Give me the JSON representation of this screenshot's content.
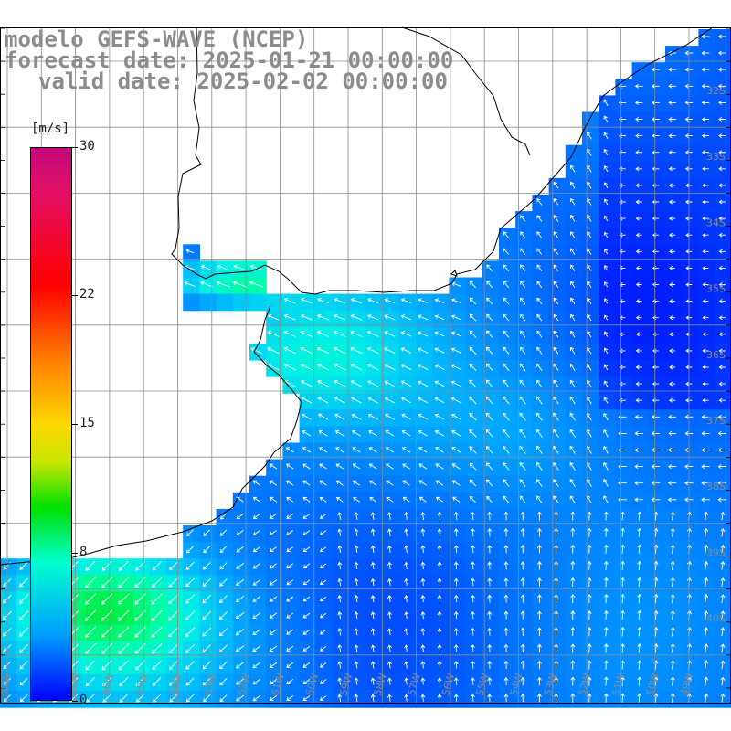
{
  "title": {
    "line1": "modelo GEFS-WAVE (NCEP)",
    "line2": "forecast date: 2025-01-21 00:00:00",
    "line3": "valid date: 2025-02-02 00:00:00"
  },
  "colorbar": {
    "unit": "[m/s]",
    "min": 0,
    "max": 30,
    "ticks": [
      {
        "value": 30,
        "label": "30"
      },
      {
        "value": 22,
        "label": "22"
      },
      {
        "value": 15,
        "label": "15"
      },
      {
        "value": 8,
        "label": "8"
      },
      {
        "value": 0,
        "label": "0"
      }
    ]
  },
  "map": {
    "variable": "wind speed and direction",
    "lon_range": [
      -70,
      -48
    ],
    "lat_range": [
      -41.5,
      -25.5
    ],
    "lat_labels": [
      "32S",
      "33S",
      "34S",
      "35S",
      "36S",
      "37S",
      "38S",
      "39S",
      "40S"
    ],
    "lon_labels": [
      "69W",
      "68W",
      "67W",
      "66W",
      "65W",
      "64W",
      "63W",
      "62W",
      "61W",
      "60W",
      "59W",
      "58W",
      "57W",
      "56W",
      "55W",
      "54W",
      "53W",
      "52W",
      "51W",
      "50W",
      "49W"
    ],
    "colors": {
      "land": "#ffffff",
      "coast": "#000000",
      "grid": "#8c8c8c",
      "arrow": "#ffffff"
    }
  }
}
